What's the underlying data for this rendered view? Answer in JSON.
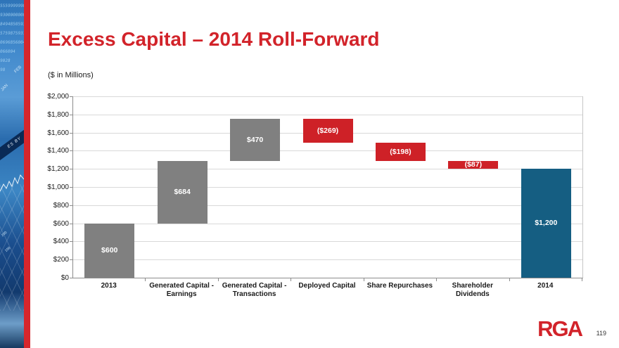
{
  "header": {
    "title": "Excess Capital – 2014 Roll-Forward",
    "units_note": "($ in Millions)"
  },
  "chart_data": {
    "type": "bar",
    "subtype": "waterfall",
    "title": "Excess Capital – 2014 Roll-Forward",
    "xlabel": "",
    "ylabel": "($ in Millions)",
    "ylim": [
      0,
      2000
    ],
    "ytick_step": 200,
    "ytick_labels": [
      "$2,000",
      "$1,800",
      "$1,600",
      "$1,400",
      "$1,200",
      "$1,000",
      "$800",
      "$600",
      "$400",
      "$200",
      "$0"
    ],
    "grid": true,
    "legend": false,
    "categories": [
      "2013",
      "Generated Capital -\nEarnings",
      "Generated Capital -\nTransactions",
      "Deployed Capital",
      "Share Repurchases",
      "Shareholder Dividends",
      "2014"
    ],
    "bars": [
      {
        "category": "2013",
        "value": 600,
        "start": 0,
        "end": 600,
        "label": "$600",
        "color": "gray"
      },
      {
        "category": "Generated Capital - Earnings",
        "value": 684,
        "start": 600,
        "end": 1284,
        "label": "$684",
        "color": "gray"
      },
      {
        "category": "Generated Capital - Transactions",
        "value": 470,
        "start": 1284,
        "end": 1754,
        "label": "$470",
        "color": "gray"
      },
      {
        "category": "Deployed Capital",
        "value": -269,
        "start": 1754,
        "end": 1485,
        "label": "($269)",
        "color": "red"
      },
      {
        "category": "Share Repurchases",
        "value": -198,
        "start": 1485,
        "end": 1287,
        "label": "($198)",
        "color": "red"
      },
      {
        "category": "Shareholder Dividends",
        "value": -87,
        "start": 1287,
        "end": 1200,
        "label": "($87)",
        "color": "red"
      },
      {
        "category": "2014",
        "value": 1200,
        "start": 0,
        "end": 1200,
        "label": "$1,200",
        "color": "blue"
      }
    ],
    "colors": {
      "gray": "#808080",
      "red": "#ce2127",
      "blue": "#155e82"
    }
  },
  "sidebar": {
    "number_strings": [
      "5559999990",
      "9300000000",
      "8494850593",
      "5759875931",
      "0696856004",
      "066004",
      "9028",
      "98"
    ],
    "month_labels": [
      "FEB",
      "JAN"
    ],
    "band_text": "ES BY",
    "axis_numbers": [
      "200",
      "100"
    ]
  },
  "footer": {
    "logo_text": "RGA",
    "page_number": "119"
  }
}
